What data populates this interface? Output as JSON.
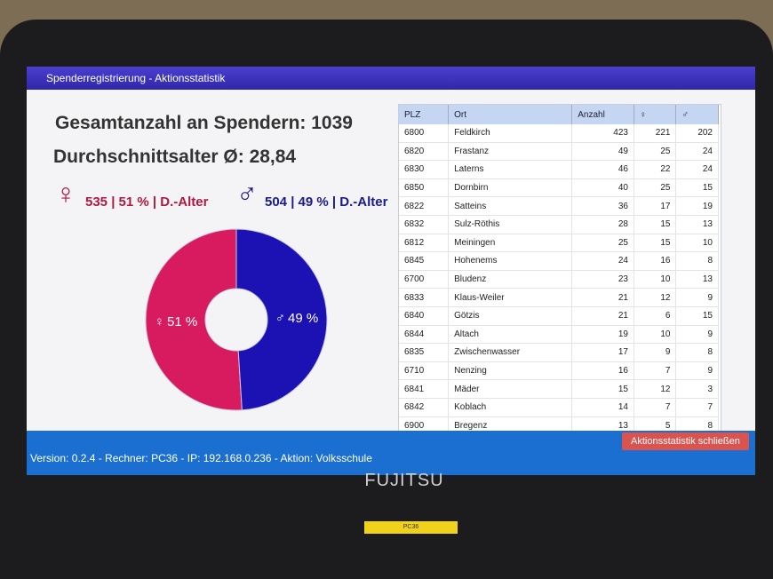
{
  "window": {
    "title": "Spenderregistrierung - Aktionsstatistik"
  },
  "stats": {
    "total_label": "Gesamtanzahl an Spendern:",
    "total": 1039,
    "avg_label": "Durchschnittsalter Ø:",
    "avg": "28,84"
  },
  "gender": {
    "female": {
      "symbol": "♀",
      "text": "535 | 51 % | D.-Alter"
    },
    "male": {
      "symbol": "♂",
      "text": "504 | 49 % | D.-Alter"
    }
  },
  "chart_data": {
    "type": "pie",
    "categories": [
      "♀",
      "♂"
    ],
    "values": [
      51,
      49
    ],
    "value_labels": [
      "51 %",
      "49 %"
    ],
    "colors": [
      "#d81b5e",
      "#1c12b4"
    ]
  },
  "table": {
    "headers": [
      "PLZ",
      "Ort",
      "Anzahl",
      "♀",
      "♂"
    ],
    "rows": [
      [
        6800,
        "Feldkirch",
        423,
        221,
        202
      ],
      [
        6820,
        "Frastanz",
        49,
        25,
        24
      ],
      [
        6830,
        "Laterns",
        46,
        22,
        24
      ],
      [
        6850,
        "Dornbirn",
        40,
        25,
        15
      ],
      [
        6822,
        "Satteins",
        36,
        17,
        19
      ],
      [
        6832,
        "Sulz-Röthis",
        28,
        15,
        13
      ],
      [
        6812,
        "Meiningen",
        25,
        15,
        10
      ],
      [
        6845,
        "Hohenems",
        24,
        16,
        8
      ],
      [
        6700,
        "Bludenz",
        23,
        10,
        13
      ],
      [
        6833,
        "Klaus-Weiler",
        21,
        12,
        9
      ],
      [
        6840,
        "Götzis",
        21,
        6,
        15
      ],
      [
        6844,
        "Altach",
        19,
        10,
        9
      ],
      [
        6835,
        "Zwischenwasser",
        17,
        9,
        8
      ],
      [
        6710,
        "Nenzing",
        16,
        7,
        9
      ],
      [
        6841,
        "Mäder",
        15,
        12,
        3
      ],
      [
        6842,
        "Koblach",
        14,
        7,
        7
      ],
      [
        6900,
        "Bregenz",
        13,
        5,
        8
      ]
    ]
  },
  "footer": {
    "status": "Version: 0.2.4 - Rechner: PC36 - IP: 192.168.0.236 - Aktion: Volksschule",
    "close_button": "Aktionsstatistik schließen"
  },
  "laptop": {
    "brand": "FUJITSU",
    "sticker": "PC36"
  }
}
